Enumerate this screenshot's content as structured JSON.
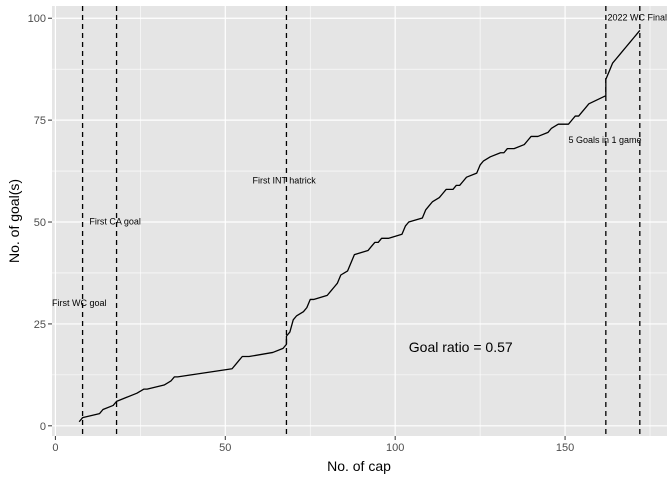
{
  "chart_data": {
    "type": "line",
    "title": "",
    "xlabel": "No. of cap",
    "ylabel": "No. of goal(s)",
    "xlim": [
      -1,
      180
    ],
    "ylim": [
      -2.5,
      103
    ],
    "x_ticks": [
      0,
      50,
      100,
      150
    ],
    "y_ticks": [
      0,
      25,
      50,
      75,
      100
    ],
    "x_tick_labels": [
      "0",
      "50",
      "100",
      "150"
    ],
    "y_tick_labels": [
      "0",
      "25",
      "50",
      "75",
      "100"
    ],
    "grid": true,
    "background": "#e5e5e5",
    "grid_color": "#ffffff",
    "series": [
      {
        "color": "#000000",
        "x": [
          7,
          8,
          13,
          14,
          17,
          18,
          21,
          24,
          26,
          27,
          32,
          34,
          35,
          36,
          52,
          53,
          54,
          55,
          57,
          64,
          67,
          68,
          68,
          69,
          70,
          71,
          73,
          74,
          75,
          76,
          80,
          81,
          82,
          83,
          84,
          86,
          87,
          88,
          92,
          93,
          94,
          95,
          96,
          97,
          98,
          102,
          103,
          104,
          108,
          109,
          110,
          111,
          113,
          114,
          115,
          117,
          118,
          119,
          120,
          121,
          124,
          125,
          126,
          128,
          131,
          132,
          133,
          135,
          138,
          139,
          140,
          142,
          145,
          146,
          148,
          151,
          152,
          153,
          154,
          155,
          156,
          157,
          162,
          162,
          163,
          164,
          165,
          166,
          167,
          168,
          169,
          170,
          171,
          172
        ],
        "y": [
          1,
          2,
          3,
          4,
          5,
          6,
          7,
          8,
          9,
          9,
          10,
          11,
          12,
          12,
          14,
          15,
          16,
          17,
          17,
          18,
          19,
          20,
          22,
          23,
          26,
          27,
          28,
          29,
          31,
          31,
          32,
          33,
          34,
          35,
          37,
          38,
          40,
          42,
          43,
          44,
          45,
          45,
          46,
          46,
          46,
          47,
          49,
          50,
          51,
          53,
          54,
          55,
          56,
          57,
          58,
          58,
          59,
          59,
          60,
          61,
          62,
          64,
          65,
          66,
          67,
          67,
          68,
          68,
          69,
          70,
          71,
          71,
          72,
          73,
          74,
          74,
          75,
          76,
          76,
          77,
          78,
          79,
          81,
          85,
          87,
          89,
          90,
          91,
          92,
          93,
          94,
          95,
          96,
          97
        ]
      }
    ],
    "vlines": [
      {
        "x": 8,
        "label": "First WC goal",
        "label_x": -1,
        "label_y": 30
      },
      {
        "x": 18,
        "label": "First CA goal",
        "label_x": 10,
        "label_y": 50
      },
      {
        "x": 68,
        "label": "First INT hatrick",
        "label_x": 58,
        "label_y": 60
      },
      {
        "x": 162,
        "label": "5 Goals in 1 game",
        "label_x": 151,
        "label_y": 70
      },
      {
        "x": 172,
        "label": "2022 WC Final",
        "label_x": 162.5,
        "label_y": 100
      }
    ],
    "annotation": {
      "text": "Goal ratio = 0.57",
      "x": 104,
      "y": 19
    }
  }
}
